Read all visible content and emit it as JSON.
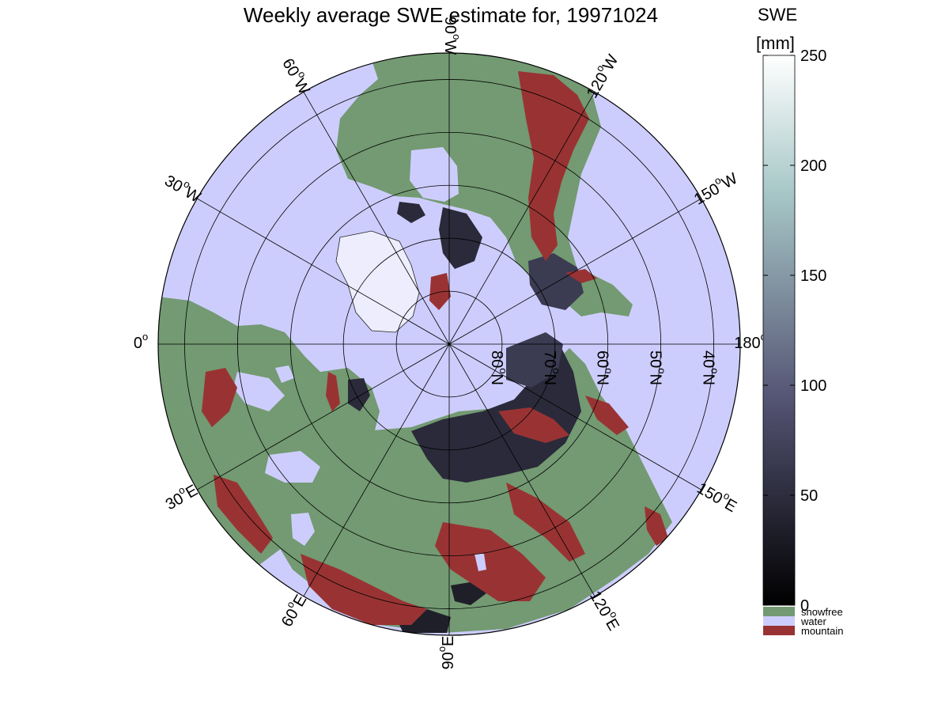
{
  "title": "Weekly average SWE estimate for, 19971024",
  "longitude_labels": [
    {
      "text": "90°W",
      "base": "90",
      "deg": "o",
      "hemi": "W",
      "lon": -90
    },
    {
      "text": "120°W",
      "base": "120",
      "deg": "o",
      "hemi": "W",
      "lon": -120
    },
    {
      "text": "150°W",
      "base": "150",
      "deg": "o",
      "hemi": "W",
      "lon": -150
    },
    {
      "text": "180°W",
      "base": "180",
      "deg": "o",
      "hemi": "W",
      "lon": 180
    },
    {
      "text": "150°E",
      "base": "150",
      "deg": "o",
      "hemi": "E",
      "lon": 150
    },
    {
      "text": "120°E",
      "base": "120",
      "deg": "o",
      "hemi": "E",
      "lon": 120
    },
    {
      "text": "90°E",
      "base": "90",
      "deg": "o",
      "hemi": "E",
      "lon": 90
    },
    {
      "text": "60°E",
      "base": "60",
      "deg": "o",
      "hemi": "E",
      "lon": 60
    },
    {
      "text": "30°E",
      "base": "30",
      "deg": "o",
      "hemi": "E",
      "lon": 30
    },
    {
      "text": "0°",
      "base": "0",
      "deg": "o",
      "hemi": "",
      "lon": 0
    },
    {
      "text": "30°W",
      "base": "30",
      "deg": "o",
      "hemi": "W",
      "lon": -30
    },
    {
      "text": "60°W",
      "base": "60",
      "deg": "o",
      "hemi": "W",
      "lon": -60
    }
  ],
  "latitude_labels": [
    {
      "text": "80°N",
      "base": "80",
      "deg": "o",
      "hemi": "N",
      "lat": 80
    },
    {
      "text": "70°N",
      "base": "70",
      "deg": "o",
      "hemi": "N",
      "lat": 70
    },
    {
      "text": "60°N",
      "base": "60",
      "deg": "o",
      "hemi": "N",
      "lat": 60
    },
    {
      "text": "50°N",
      "base": "50",
      "deg": "o",
      "hemi": "N",
      "lat": 50
    },
    {
      "text": "40°N",
      "base": "40",
      "deg": "o",
      "hemi": "N",
      "lat": 40
    }
  ],
  "projection": {
    "type": "north-polar-azimuthal",
    "lat_min": 35,
    "lat_max": 90,
    "orientation": "0° at left, 90°E at bottom, 90°W at top, 180° at right"
  },
  "colorbar": {
    "title_line1": "SWE",
    "title_line2": "[mm]",
    "ticks": [
      "0",
      "50",
      "100",
      "150",
      "200",
      "250"
    ],
    "range": [
      0,
      250
    ],
    "colormap": "bone",
    "legend": [
      {
        "label": "snowfree",
        "color": "#739a72"
      },
      {
        "label": "water",
        "color": "#cdcdfd"
      },
      {
        "label": "mountain",
        "color": "#993333"
      }
    ]
  },
  "colors": {
    "water": "#cdcdfd",
    "snowfree": "#739a72",
    "mountain": "#993333",
    "snow_low": "#1f1f2a",
    "snow_mid": "#3a3a4e"
  }
}
